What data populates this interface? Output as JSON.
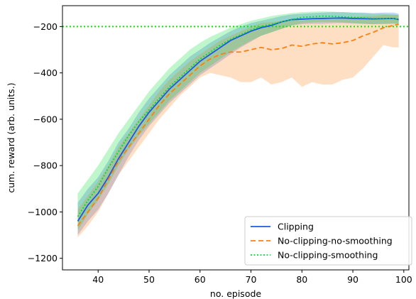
{
  "chart_data": {
    "type": "line",
    "xlabel": "no. episode",
    "ylabel": "cum. reward (arb. units.)",
    "xlim": [
      33,
      101
    ],
    "ylim": [
      -1250,
      -110
    ],
    "xticks": [
      40,
      50,
      60,
      70,
      80,
      90,
      100
    ],
    "yticks": [
      -1200,
      -1000,
      -800,
      -600,
      -400,
      -200
    ],
    "grid": false,
    "legend_position": "lower-right",
    "reference_line": {
      "y": -200,
      "color": "#00ee00",
      "style": "dotted"
    },
    "series": [
      {
        "name": "Clipping",
        "color": "#1f57e6",
        "style": "solid",
        "x": [
          36,
          38,
          40,
          42,
          44,
          46,
          48,
          50,
          52,
          54,
          56,
          58,
          60,
          62,
          64,
          66,
          68,
          70,
          72,
          74,
          76,
          78,
          80,
          82,
          84,
          86,
          88,
          90,
          92,
          94,
          96,
          98,
          99
        ],
        "y": [
          -1040,
          -970,
          -920,
          -850,
          -770,
          -700,
          -630,
          -570,
          -520,
          -470,
          -430,
          -390,
          -350,
          -320,
          -290,
          -260,
          -240,
          -220,
          -205,
          -195,
          -180,
          -170,
          -168,
          -166,
          -165,
          -164,
          -163,
          -165,
          -166,
          -167,
          -166,
          -165,
          -170
        ],
        "lower": [
          -1100,
          -1040,
          -990,
          -920,
          -840,
          -760,
          -690,
          -630,
          -580,
          -530,
          -490,
          -450,
          -410,
          -380,
          -350,
          -320,
          -290,
          -265,
          -240,
          -225,
          -210,
          -195,
          -190,
          -188,
          -188,
          -186,
          -185,
          -187,
          -188,
          -190,
          -188,
          -186,
          -190
        ],
        "upper": [
          -960,
          -900,
          -850,
          -780,
          -700,
          -640,
          -570,
          -510,
          -460,
          -410,
          -370,
          -330,
          -300,
          -270,
          -245,
          -220,
          -200,
          -185,
          -175,
          -165,
          -155,
          -148,
          -145,
          -142,
          -140,
          -138,
          -138,
          -140,
          -140,
          -142,
          -140,
          -140,
          -145
        ]
      },
      {
        "name": "No-clipping-no-smoothing",
        "color": "#ff7f0e",
        "style": "dashed",
        "x": [
          36,
          38,
          40,
          42,
          44,
          46,
          48,
          50,
          52,
          54,
          56,
          58,
          60,
          62,
          64,
          66,
          68,
          70,
          72,
          74,
          76,
          78,
          80,
          82,
          84,
          86,
          88,
          90,
          92,
          94,
          96,
          98,
          99
        ],
        "y": [
          -1060,
          -1000,
          -940,
          -860,
          -780,
          -720,
          -660,
          -600,
          -540,
          -490,
          -450,
          -410,
          -370,
          -340,
          -320,
          -310,
          -310,
          -300,
          -290,
          -300,
          -295,
          -280,
          -285,
          -275,
          -270,
          -275,
          -270,
          -260,
          -240,
          -225,
          -205,
          -195,
          -190
        ],
        "lower": [
          -1110,
          -1060,
          -1000,
          -920,
          -840,
          -780,
          -720,
          -660,
          -600,
          -550,
          -500,
          -460,
          -420,
          -400,
          -410,
          -420,
          -440,
          -440,
          -420,
          -450,
          -440,
          -420,
          -460,
          -440,
          -450,
          -450,
          -430,
          -420,
          -380,
          -330,
          -280,
          -290,
          -290
        ],
        "upper": [
          -990,
          -930,
          -870,
          -800,
          -720,
          -660,
          -600,
          -540,
          -480,
          -430,
          -390,
          -350,
          -320,
          -290,
          -260,
          -240,
          -220,
          -200,
          -185,
          -180,
          -175,
          -170,
          -175,
          -165,
          -165,
          -170,
          -165,
          -160,
          -155,
          -155,
          -150,
          -150,
          -150
        ]
      },
      {
        "name": "No-clipping-smoothing",
        "color": "#00dd33",
        "style": "dotted",
        "x": [
          36,
          38,
          40,
          42,
          44,
          46,
          48,
          50,
          52,
          54,
          56,
          58,
          60,
          62,
          64,
          66,
          68,
          70,
          72,
          74,
          76,
          78,
          80,
          82,
          84,
          86,
          88,
          90,
          92,
          94,
          96,
          98,
          99
        ],
        "y": [
          -1020,
          -950,
          -890,
          -810,
          -740,
          -670,
          -610,
          -560,
          -510,
          -460,
          -420,
          -380,
          -340,
          -310,
          -280,
          -255,
          -235,
          -215,
          -200,
          -190,
          -180,
          -170,
          -160,
          -158,
          -155,
          -156,
          -158,
          -160,
          -162,
          -165,
          -165,
          -165,
          -168
        ],
        "lower": [
          -1080,
          -1010,
          -950,
          -880,
          -800,
          -730,
          -670,
          -620,
          -570,
          -520,
          -480,
          -440,
          -400,
          -370,
          -340,
          -310,
          -285,
          -260,
          -240,
          -225,
          -210,
          -195,
          -185,
          -182,
          -180,
          -180,
          -182,
          -185,
          -188,
          -190,
          -190,
          -190,
          -192
        ],
        "upper": [
          -920,
          -860,
          -800,
          -730,
          -660,
          -600,
          -540,
          -480,
          -430,
          -380,
          -340,
          -300,
          -270,
          -245,
          -225,
          -205,
          -190,
          -175,
          -165,
          -155,
          -148,
          -142,
          -138,
          -136,
          -135,
          -136,
          -138,
          -140,
          -142,
          -145,
          -145,
          -148,
          -150
        ]
      }
    ]
  }
}
